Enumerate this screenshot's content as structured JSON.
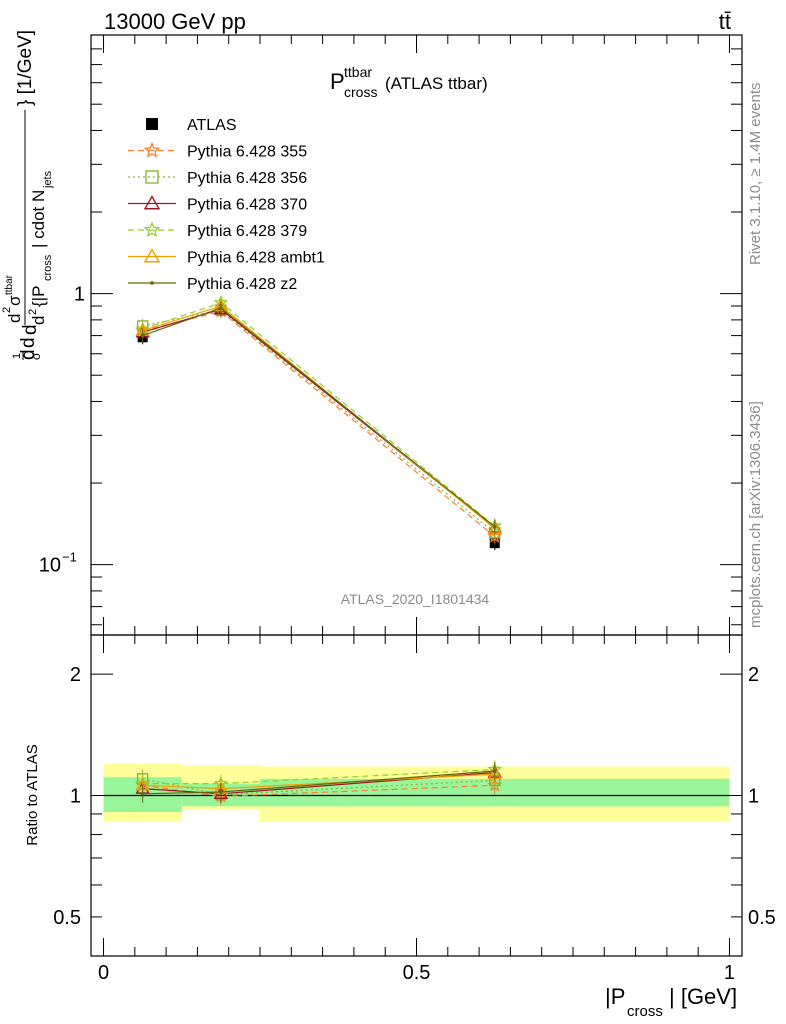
{
  "header": {
    "left": "13000 GeV pp",
    "right": "tt̄"
  },
  "side": {
    "rivet": "Rivet 3.1.10, ≥ 1.4M events",
    "mcplots": "mcplots.cern.ch [arXiv:1306.3436]"
  },
  "colors": {
    "atlas": "#000000",
    "p355": "#ff7f2a",
    "p356": "#8db333",
    "p370": "#a31524",
    "p379": "#8fd12a",
    "ambt1": "#f0a000",
    "z2": "#66660e",
    "band_inner": "#99f599",
    "band_outer": "#ffff99"
  },
  "chart_data": [
    {
      "type": "line",
      "title_main": "P",
      "title_sup": "ttbar",
      "title_sub": "cross",
      "title_suffix": "(ATLAS ttbar)",
      "ylabel": "d²σ^(tt̄) / d²{|P_cross| cdot N_jets}  [1/GeV], normalized (1/σ dσ/d...)",
      "yscale": "log",
      "ylim": [
        0.055,
        9.0
      ],
      "xlim": [
        -0.02,
        1.02
      ],
      "yticks": [
        {
          "v": 1,
          "label": "1"
        },
        {
          "v": 0.1,
          "label": "10",
          "exp": "−1"
        }
      ],
      "watermark": "ATLAS_2020_I1801434",
      "x": [
        0.0625,
        0.1875,
        0.625
      ],
      "bins": [
        [
          0,
          0.125
        ],
        [
          0.125,
          0.25
        ],
        [
          0.25,
          1.0
        ]
      ],
      "series": [
        {
          "name": "ATLAS",
          "key": "atlas",
          "marker": "square",
          "dash": "none",
          "values": [
            0.69,
            0.865,
            0.12
          ]
        },
        {
          "name": "Pythia 6.428 355",
          "key": "p355",
          "marker": "star",
          "dash": "dash",
          "values": [
            0.73,
            0.86,
            0.127
          ]
        },
        {
          "name": "Pythia 6.428 356",
          "key": "p356",
          "marker": "square-open",
          "dash": "dot",
          "values": [
            0.76,
            0.87,
            0.131
          ]
        },
        {
          "name": "Pythia 6.428 370",
          "key": "p370",
          "marker": "triangle-open",
          "dash": "solid",
          "values": [
            0.72,
            0.875,
            0.137
          ]
        },
        {
          "name": "Pythia 6.428 379",
          "key": "p379",
          "marker": "star",
          "dash": "dash",
          "values": [
            0.74,
            0.925,
            0.139
          ]
        },
        {
          "name": "Pythia 6.428 ambt1",
          "key": "ambt1",
          "marker": "triangle-open",
          "dash": "solid",
          "values": [
            0.73,
            0.9,
            0.136
          ]
        },
        {
          "name": "Pythia 6.428 z2",
          "key": "z2",
          "marker": "dot",
          "dash": "solid",
          "values": [
            0.7,
            0.885,
            0.138
          ]
        }
      ]
    },
    {
      "type": "line",
      "ylabel": "Ratio to ATLAS",
      "yscale": "log",
      "ylim": [
        0.4,
        2.5
      ],
      "xlabel_pre": "|P",
      "xlabel_sub": "cross",
      "xlabel_post": "| [GeV]",
      "yticks": [
        {
          "v": 0.5,
          "label": "0.5"
        },
        {
          "v": 1,
          "label": "1"
        },
        {
          "v": 2,
          "label": "2"
        }
      ],
      "xticks": [
        {
          "v": 0,
          "label": "0"
        },
        {
          "v": 0.5,
          "label": "0.5"
        },
        {
          "v": 1,
          "label": "1"
        }
      ],
      "band_inner": [
        [
          0.91,
          1.11
        ],
        [
          0.94,
          1.07
        ],
        [
          0.94,
          1.1
        ]
      ],
      "band_outer": [
        [
          0.86,
          1.2
        ],
        [
          0.92,
          1.19
        ],
        [
          0.86,
          1.18
        ]
      ],
      "ratios": {
        "p355": [
          1.06,
          0.995,
          1.06
        ],
        "p356": [
          1.1,
          1.005,
          1.09
        ],
        "p370": [
          1.04,
          1.01,
          1.14
        ],
        "p379": [
          1.07,
          1.07,
          1.16
        ],
        "ambt1": [
          1.06,
          1.04,
          1.13
        ],
        "z2": [
          1.01,
          1.02,
          1.15
        ]
      }
    }
  ]
}
